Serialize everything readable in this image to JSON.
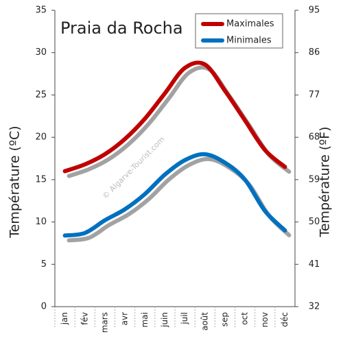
{
  "chart_data": {
    "type": "line",
    "title": "Praia da Rocha",
    "watermark": "© Algarve-Tourist.com",
    "ylabel": "Température (ºC)",
    "y2label": "Température (ºF)",
    "categories": [
      "jan",
      "fév",
      "mars",
      "avr",
      "mai",
      "juin",
      "juil",
      "août",
      "sep",
      "oct",
      "nov",
      "déc"
    ],
    "series": [
      {
        "name": "Maximales",
        "color": "#c00000",
        "values": [
          16,
          16.8,
          18,
          19.8,
          22.2,
          25.2,
          28.2,
          28.6,
          25.5,
          22,
          18.5,
          16.5
        ]
      },
      {
        "name": "Minimales",
        "color": "#0070c0",
        "values": [
          8.4,
          8.7,
          10.2,
          11.5,
          13.3,
          15.6,
          17.3,
          18,
          17,
          15,
          11.3,
          9
        ]
      }
    ],
    "ylim": [
      0,
      35
    ],
    "yticks": [
      0,
      5,
      10,
      15,
      20,
      25,
      30,
      35
    ],
    "y2lim": [
      32,
      95
    ],
    "y2ticks": [
      32,
      41,
      50,
      59,
      68,
      77,
      86,
      95
    ],
    "legend": "upper right"
  }
}
